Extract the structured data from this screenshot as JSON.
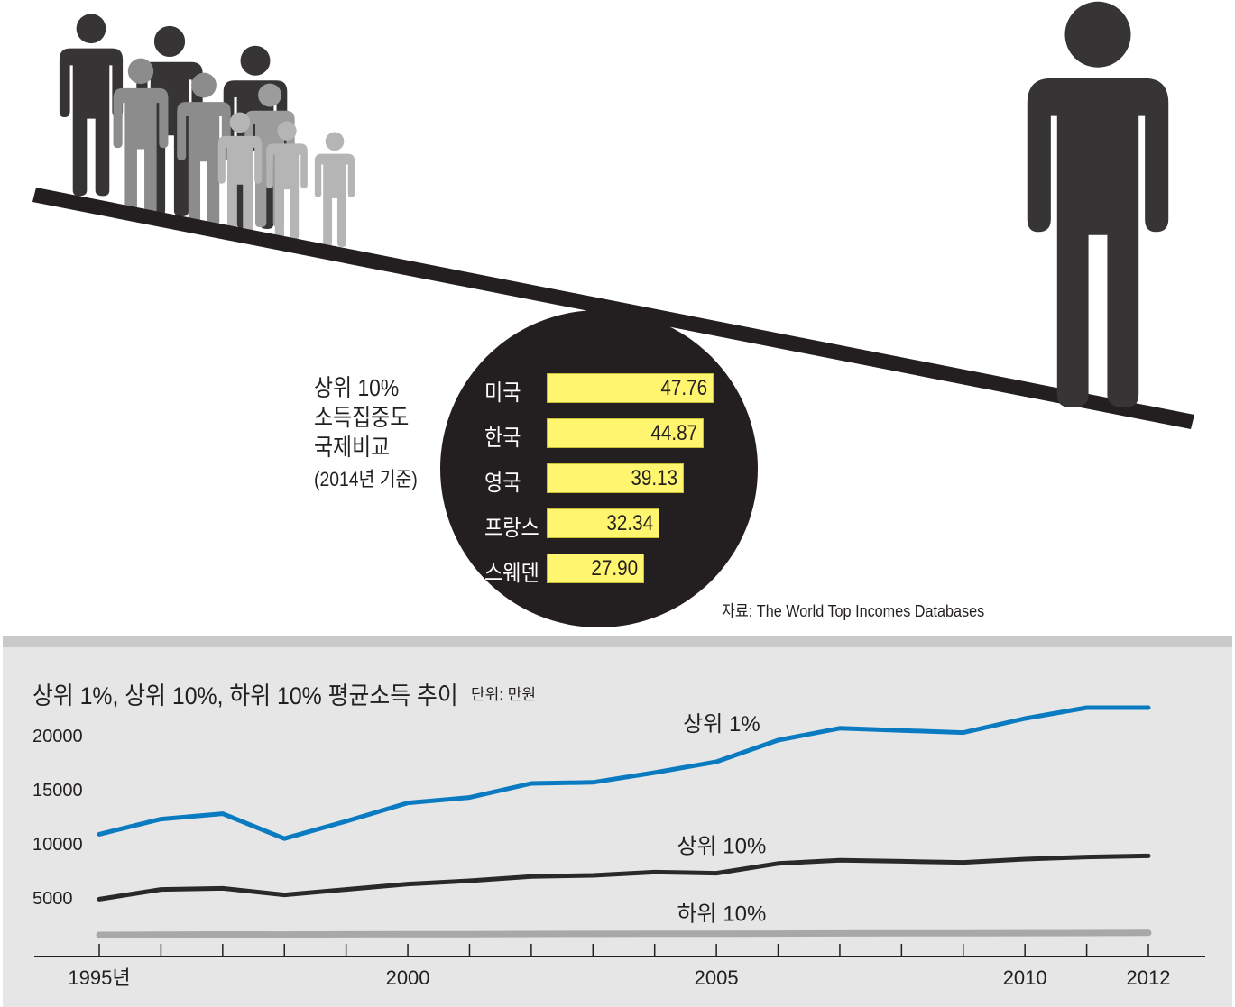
{
  "colors": {
    "figure_dark": "#363435",
    "figure_mid": "#8c8c8c",
    "figure_light": "#b5b5b5",
    "bar_fill": "#fff56e",
    "top1_line": "#0a7bc1",
    "top10_line": "#2b2829",
    "bottom10_line": "#a8a8a8",
    "panel_bg": "#e6e6e6"
  },
  "icons": [
    "person-icon"
  ],
  "bar_chart": {
    "title_lines": [
      "상위 10%",
      "소득집중도",
      "국제비교"
    ],
    "subtitle": "(2014년 기준)",
    "source": "자료: The World Top Incomes Databases",
    "chart_data": {
      "type": "bar",
      "orientation": "horizontal",
      "categories": [
        "미국",
        "한국",
        "영국",
        "프랑스",
        "스웨덴"
      ],
      "values": [
        47.76,
        44.87,
        39.13,
        32.34,
        27.9
      ],
      "labels": [
        "47.76",
        "44.87",
        "39.13",
        "32.34",
        "27.90"
      ]
    }
  },
  "line_chart": {
    "title": "상위 1%, 상위 10%, 하위 10% 평균소득 추이",
    "unit": "단위: 만원",
    "chart_data": {
      "type": "line",
      "x": [
        1995,
        1996,
        1997,
        1998,
        1999,
        2000,
        2001,
        2002,
        2003,
        2004,
        2005,
        2006,
        2007,
        2008,
        2009,
        2010,
        2011,
        2012
      ],
      "x_tick_labels": [
        "1995년",
        "2000",
        "2005",
        "2010",
        "2012"
      ],
      "x_tick_values": [
        1995,
        2000,
        2005,
        2010,
        2012
      ],
      "y_tick_labels": [
        "5000",
        "10000",
        "15000",
        "20000"
      ],
      "y_tick_values": [
        5000,
        10000,
        15000,
        20000
      ],
      "ylim": [
        0,
        22000
      ],
      "series": [
        {
          "name": "상위 1%",
          "values": [
            10800,
            12200,
            12700,
            10400,
            12000,
            13700,
            14200,
            15500,
            15600,
            16500,
            17500,
            19500,
            20600,
            20400,
            20200,
            21500,
            22500,
            22500
          ]
        },
        {
          "name": "상위 10%",
          "values": [
            4800,
            5700,
            5800,
            5200,
            5700,
            6200,
            6500,
            6900,
            7000,
            7300,
            7200,
            8100,
            8400,
            8300,
            8200,
            8500,
            8700,
            8800
          ]
        },
        {
          "name": "하위 10%",
          "values": [
            1500,
            1520,
            1540,
            1530,
            1550,
            1560,
            1570,
            1580,
            1590,
            1600,
            1610,
            1620,
            1630,
            1640,
            1650,
            1660,
            1670,
            1680
          ]
        }
      ]
    }
  }
}
